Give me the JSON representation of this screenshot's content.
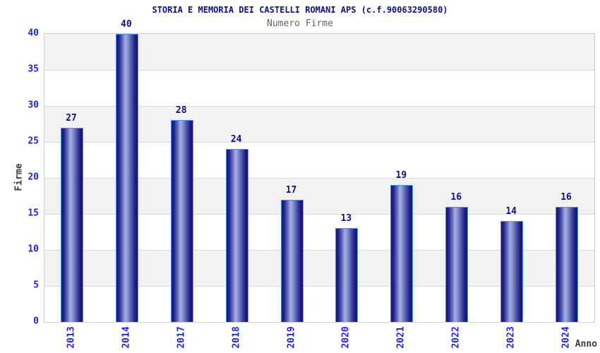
{
  "page": {
    "background": "#ffffff"
  },
  "chart_data": {
    "type": "bar",
    "title": "STORIA E MEMORIA DEI CASTELLI ROMANI APS (c.f.90063290580)",
    "subtitle": "Numero Firme",
    "xlabel": "Anno",
    "ylabel": "Firme",
    "categories": [
      "2013",
      "2014",
      "2017",
      "2018",
      "2019",
      "2020",
      "2021",
      "2022",
      "2023",
      "2024"
    ],
    "values": [
      27,
      40,
      28,
      24,
      17,
      13,
      19,
      16,
      14,
      16
    ],
    "value_labels_shown": true,
    "ylim": [
      0,
      40
    ],
    "ytick_step": 5,
    "grid": "horizontal gridlines with alternating shaded bands",
    "legend": "none",
    "colors": {
      "title": "#0f0f80",
      "subtitle": "#666666",
      "axis_tick_label": "#2323cd",
      "axis_title": "#3c3c3c",
      "value_label": "#0f0f80",
      "bar_dark": "#15157a",
      "bar_light": "#a6afe0",
      "bar_border": "#4e93f0",
      "band_gray": "#f2f2f2",
      "band_white": "#ffffff",
      "grid_line": "#d9d9d9",
      "plot_border": "#cccccc"
    }
  }
}
